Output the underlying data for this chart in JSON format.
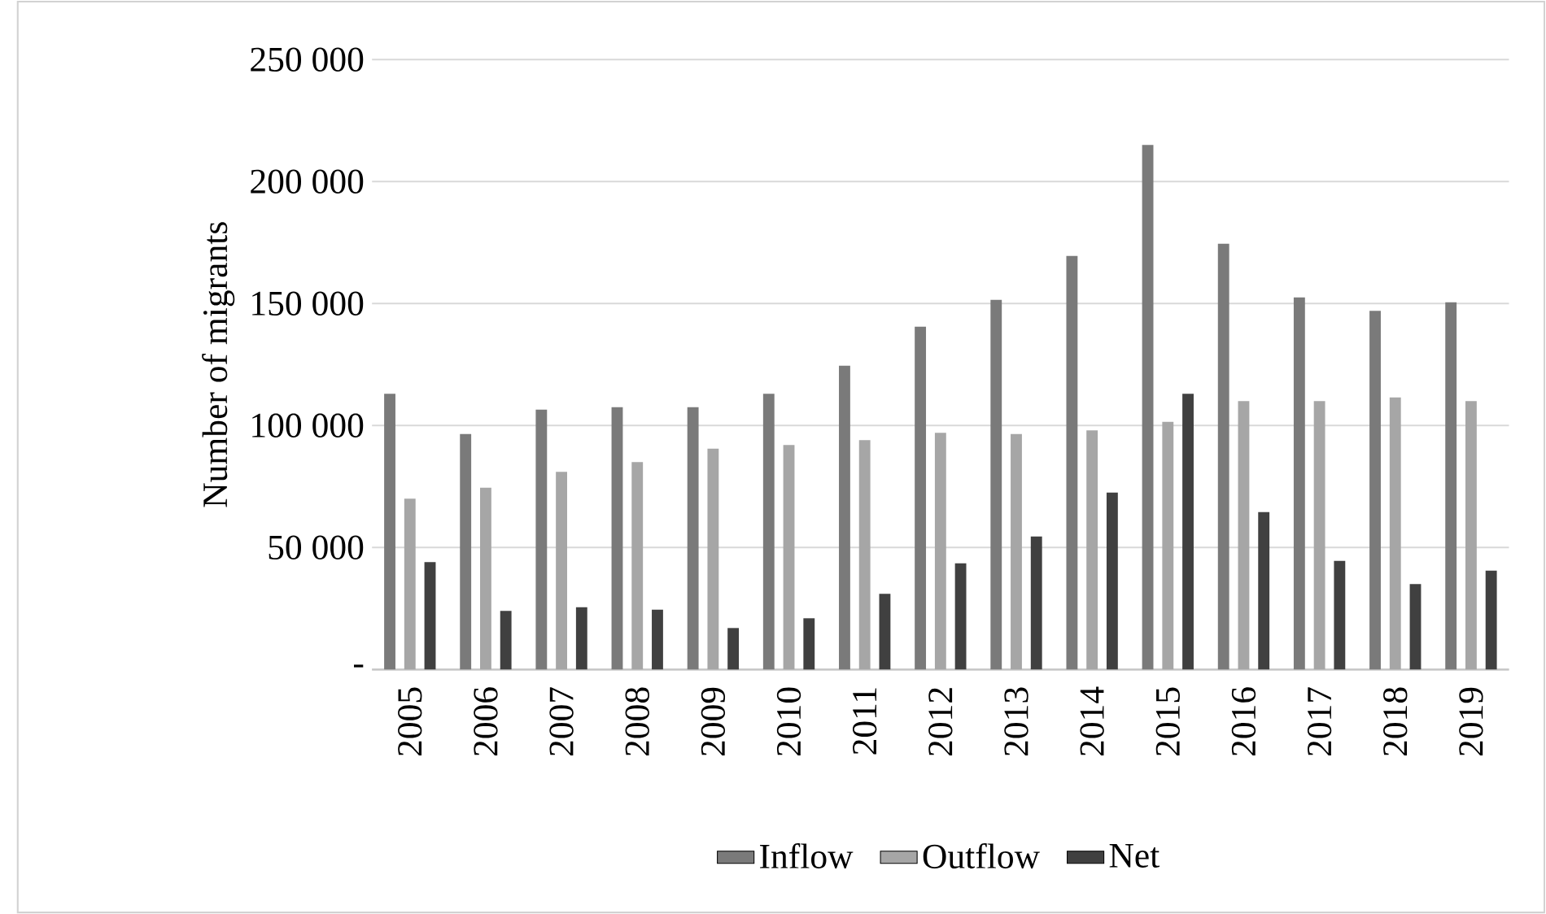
{
  "chart_data": {
    "type": "bar",
    "ylabel": "Number of migrants",
    "categories": [
      "2005",
      "2006",
      "2007",
      "2008",
      "2009",
      "2010",
      "2011",
      "2012",
      "2013",
      "2014",
      "2015",
      "2016",
      "2017",
      "2018",
      "2019"
    ],
    "series": [
      {
        "name": "Inflow",
        "color": "#7a7a7a",
        "values": [
          113000,
          96500,
          106500,
          107500,
          107500,
          113000,
          124500,
          140500,
          151500,
          169500,
          215000,
          174500,
          152500,
          147000,
          150500
        ]
      },
      {
        "name": "Outflow",
        "color": "#a6a6a6",
        "values": [
          70000,
          74500,
          81000,
          85000,
          90500,
          92000,
          94000,
          97000,
          96500,
          98000,
          101500,
          110000,
          110000,
          111500,
          110000
        ]
      },
      {
        "name": "Net",
        "color": "#404040",
        "values": [
          44000,
          24000,
          25500,
          24500,
          17000,
          21000,
          31000,
          43500,
          54500,
          72500,
          113000,
          64500,
          44500,
          35000,
          40500
        ]
      }
    ],
    "ylim": [
      0,
      250000
    ],
    "yticks": [
      {
        "value": 0,
        "label": "-"
      },
      {
        "value": 50000,
        "label": "50 000"
      },
      {
        "value": 100000,
        "label": "100 000"
      },
      {
        "value": 150000,
        "label": "150 000"
      },
      {
        "value": 200000,
        "label": "200 000"
      },
      {
        "value": 250000,
        "label": "250 000"
      }
    ],
    "grid": "y",
    "legend": "bottom"
  }
}
